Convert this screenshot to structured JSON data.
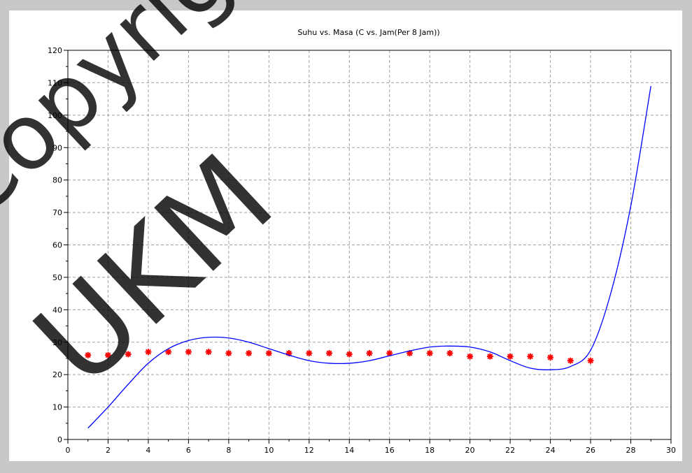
{
  "watermark": {
    "line1": "Copyright",
    "line2": "UKM",
    "color": "#000000"
  },
  "chart_data": {
    "type": "scatter",
    "title": "Suhu vs. Masa (C vs. Jam(Per 8 Jam))",
    "xlabel": "",
    "ylabel": "",
    "xlim": [
      0,
      30
    ],
    "ylim": [
      0,
      120
    ],
    "xticks": [
      0,
      2,
      4,
      6,
      8,
      10,
      12,
      14,
      16,
      18,
      20,
      22,
      24,
      26,
      28,
      30
    ],
    "yticks": [
      0,
      10,
      20,
      30,
      40,
      50,
      60,
      70,
      80,
      90,
      100,
      110,
      120
    ],
    "grid": true,
    "series": [
      {
        "kind": "scatter",
        "marker": "asterisk",
        "color": "#ff0000",
        "x": [
          1,
          2,
          3,
          4,
          5,
          6,
          7,
          8,
          9,
          10,
          11,
          12,
          13,
          14,
          15,
          16,
          17,
          18,
          19,
          20,
          21,
          22,
          23,
          24,
          25,
          26
        ],
        "y": [
          26,
          26,
          26.3,
          27,
          27,
          27,
          27,
          26.6,
          26.6,
          26.6,
          26.6,
          26.6,
          26.6,
          26.3,
          26.6,
          26.6,
          26.6,
          26.6,
          26.6,
          25.6,
          25.6,
          25.6,
          25.6,
          25.3,
          24.3,
          24.3
        ]
      },
      {
        "kind": "line",
        "color": "#0000ff",
        "x": [
          1,
          2,
          3,
          4,
          5,
          6,
          7,
          8,
          9,
          10,
          11,
          12,
          13,
          14,
          15,
          16,
          17,
          18,
          19,
          20,
          21,
          22,
          23,
          24,
          25,
          26,
          27,
          28,
          29
        ],
        "y": [
          3.5,
          10,
          17,
          23.5,
          28,
          30.5,
          31.5,
          31.3,
          30,
          28,
          26,
          24.3,
          23.5,
          23.5,
          24.3,
          25.8,
          27.3,
          28.5,
          28.8,
          28.5,
          27,
          24.3,
          22,
          21.5,
          22.5,
          27.5,
          45,
          72,
          109
        ]
      }
    ]
  }
}
